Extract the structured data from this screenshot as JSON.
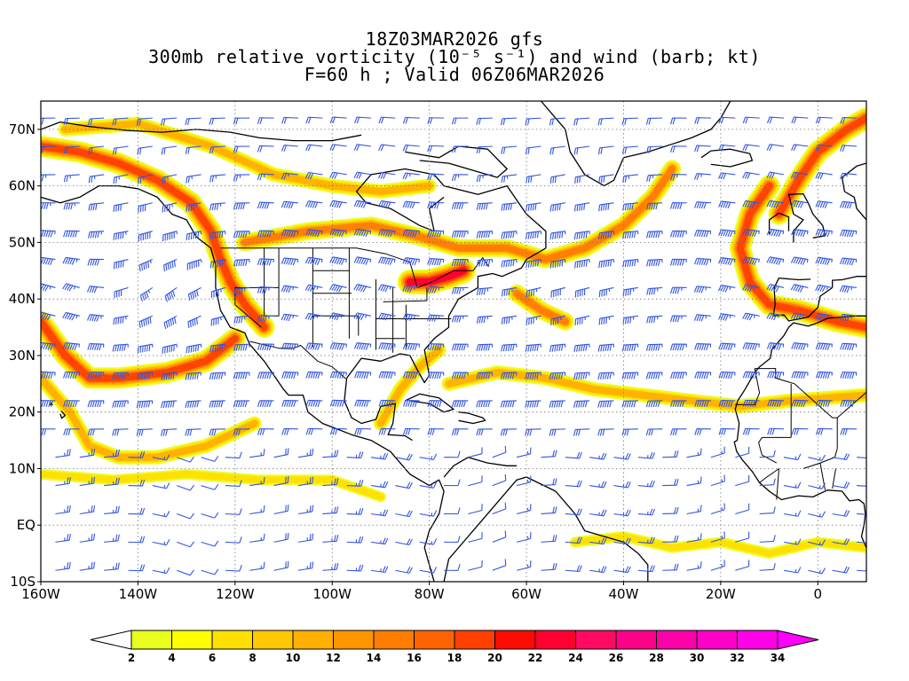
{
  "title": {
    "line1": "18Z03MAR2026 gfs",
    "line2": "300mb relative vorticity (10⁻⁵ s⁻¹) and wind (barb; kt)",
    "line3": "F=60 h ; Valid 06Z06MAR2026"
  },
  "map": {
    "lon_range": [
      -160,
      10
    ],
    "lat_range": [
      -10,
      75
    ],
    "lon_ticks": [
      {
        "value": -160,
        "label": "160W"
      },
      {
        "value": -140,
        "label": "140W"
      },
      {
        "value": -120,
        "label": "120W"
      },
      {
        "value": -100,
        "label": "100W"
      },
      {
        "value": -80,
        "label": "80W"
      },
      {
        "value": -60,
        "label": "60W"
      },
      {
        "value": -40,
        "label": "40W"
      },
      {
        "value": -20,
        "label": "20W"
      },
      {
        "value": 0,
        "label": "0"
      }
    ],
    "lat_ticks": [
      {
        "value": -10,
        "label": "10S"
      },
      {
        "value": 0,
        "label": "EQ"
      },
      {
        "value": 10,
        "label": "10N"
      },
      {
        "value": 20,
        "label": "20N"
      },
      {
        "value": 30,
        "label": "30N"
      },
      {
        "value": 40,
        "label": "40N"
      },
      {
        "value": 50,
        "label": "50N"
      },
      {
        "value": 60,
        "label": "60N"
      },
      {
        "value": 70,
        "label": "70N"
      }
    ],
    "grid": "dotted",
    "barb_color": "#3355dd",
    "coast_color": "#000000"
  },
  "vorticity_bands": [
    {
      "name": "alaska-gulf-arc",
      "peak": 20,
      "points": [
        [
          -160,
          67
        ],
        [
          -152,
          66
        ],
        [
          -144,
          64
        ],
        [
          -136,
          61
        ],
        [
          -129,
          57
        ],
        [
          -125,
          52
        ],
        [
          -123,
          47
        ],
        [
          -121,
          43
        ],
        [
          -118,
          39
        ],
        [
          -114,
          35
        ]
      ]
    },
    {
      "name": "great-lakes-atlantic-jet",
      "peak": 16,
      "points": [
        [
          -118,
          50
        ],
        [
          -105,
          52
        ],
        [
          -92,
          53
        ],
        [
          -82,
          51
        ],
        [
          -74,
          49
        ],
        [
          -64,
          49
        ],
        [
          -56,
          47
        ],
        [
          -48,
          49
        ],
        [
          -40,
          53
        ],
        [
          -34,
          58
        ],
        [
          -30,
          63
        ]
      ]
    },
    {
      "name": "northern-canada-band",
      "peak": 10,
      "points": [
        [
          -155,
          70
        ],
        [
          -140,
          71
        ],
        [
          -125,
          67
        ],
        [
          -112,
          62
        ],
        [
          -100,
          60
        ],
        [
          -90,
          59
        ],
        [
          -80,
          60
        ]
      ]
    },
    {
      "name": "subtropical-pacific-trough",
      "peak": 18,
      "points": [
        [
          -120,
          33
        ],
        [
          -126,
          29
        ],
        [
          -134,
          27
        ],
        [
          -144,
          26
        ],
        [
          -150,
          26
        ],
        [
          -155,
          30
        ],
        [
          -160,
          36
        ]
      ]
    },
    {
      "name": "southern-pacific-loop",
      "peak": 10,
      "points": [
        [
          -160,
          26
        ],
        [
          -154,
          20
        ],
        [
          -150,
          14
        ],
        [
          -144,
          12
        ],
        [
          -136,
          12
        ],
        [
          -126,
          14
        ],
        [
          -116,
          18
        ]
      ]
    },
    {
      "name": "subtropical-atlantic-jet",
      "peak": 12,
      "points": [
        [
          -76,
          25
        ],
        [
          -66,
          27
        ],
        [
          -56,
          26
        ],
        [
          -46,
          24
        ],
        [
          -36,
          23
        ],
        [
          -26,
          22
        ],
        [
          -16,
          21
        ],
        [
          -6,
          22
        ],
        [
          10,
          23
        ]
      ]
    },
    {
      "name": "eastern-atlantic-trough",
      "peak": 20,
      "points": [
        [
          -10,
          60
        ],
        [
          -14,
          55
        ],
        [
          -16,
          49
        ],
        [
          -14,
          43
        ],
        [
          -10,
          39
        ],
        [
          -4,
          38
        ],
        [
          4,
          36
        ],
        [
          10,
          35
        ]
      ]
    },
    {
      "name": "norwegian-sea-band",
      "peak": 20,
      "points": [
        [
          -8,
          55
        ],
        [
          -4,
          61
        ],
        [
          0,
          66
        ],
        [
          6,
          70
        ],
        [
          10,
          72
        ]
      ]
    },
    {
      "name": "mid-atlantic-streak",
      "peak": 14,
      "points": [
        [
          -62,
          41
        ],
        [
          -57,
          38
        ],
        [
          -52,
          36
        ]
      ]
    },
    {
      "name": "gulf-florida-band",
      "peak": 12,
      "points": [
        [
          -90,
          18
        ],
        [
          -86,
          24
        ],
        [
          -82,
          28
        ],
        [
          -78,
          31
        ]
      ]
    },
    {
      "name": "northeast-us-core",
      "peak": 24,
      "points": [
        [
          -84,
          43
        ],
        [
          -80,
          43
        ],
        [
          -76,
          44
        ],
        [
          -73,
          45
        ]
      ]
    },
    {
      "name": "equatorial-pacific-band",
      "peak": 8,
      "points": [
        [
          -160,
          9
        ],
        [
          -145,
          8
        ],
        [
          -130,
          9
        ],
        [
          -115,
          8
        ],
        [
          -100,
          8
        ],
        [
          -90,
          5
        ]
      ]
    },
    {
      "name": "south-atlantic-equatorial",
      "peak": 6,
      "points": [
        [
          -50,
          -3
        ],
        [
          -40,
          -2
        ],
        [
          -30,
          -4
        ],
        [
          -20,
          -3
        ],
        [
          -10,
          -5
        ],
        [
          0,
          -3
        ],
        [
          10,
          -4
        ]
      ]
    }
  ],
  "colorbar": {
    "labels": [
      "2",
      "4",
      "6",
      "8",
      "10",
      "12",
      "14",
      "16",
      "18",
      "20",
      "22",
      "24",
      "26",
      "28",
      "30",
      "32",
      "34"
    ],
    "colors": [
      "#e9ff1e",
      "#ffff00",
      "#ffdf00",
      "#ffc800",
      "#ffb000",
      "#ff9600",
      "#ff7d00",
      "#ff6400",
      "#ff4000",
      "#ff0a00",
      "#ff0030",
      "#ff0a60",
      "#ff0088",
      "#ff00aa",
      "#ff00c8",
      "#ff00e8"
    ],
    "under_color": "#ffffff",
    "over_color": "#ff00ff"
  }
}
